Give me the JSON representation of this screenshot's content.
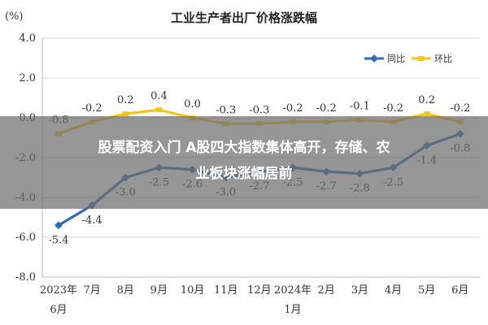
{
  "chart_data": {
    "type": "line",
    "title": "工业生产者出厂价格涨跌幅",
    "ylabel": "(%)",
    "ylim": [
      -8.0,
      4.0
    ],
    "yticks": [
      "4.0",
      "2.0",
      "0.0",
      "-2.0",
      "-4.0",
      "-6.0",
      "-8.0"
    ],
    "categories": [
      {
        "line1": "2023年",
        "line2": "6月"
      },
      {
        "line1": "7月",
        "line2": ""
      },
      {
        "line1": "8月",
        "line2": ""
      },
      {
        "line1": "9月",
        "line2": ""
      },
      {
        "line1": "10月",
        "line2": ""
      },
      {
        "line1": "11月",
        "line2": ""
      },
      {
        "line1": "12月",
        "line2": ""
      },
      {
        "line1": "2024年",
        "line2": "1月"
      },
      {
        "line1": "2月",
        "line2": ""
      },
      {
        "line1": "3月",
        "line2": ""
      },
      {
        "line1": "4月",
        "line2": ""
      },
      {
        "line1": "5月",
        "line2": ""
      },
      {
        "line1": "6月",
        "line2": ""
      }
    ],
    "series": [
      {
        "name": "同比",
        "color": "#2f6db5",
        "values": [
          -5.4,
          -4.4,
          -3.0,
          -2.5,
          -2.6,
          -3.0,
          -2.7,
          -2.5,
          -2.7,
          -2.8,
          -2.5,
          -1.4,
          -0.8
        ],
        "labels": [
          "-5.4",
          "-4.4",
          "-3.0",
          "-2.5",
          "-2.6",
          "-3.0",
          "-2.7",
          "-2.5",
          "-2.7",
          "-2.8",
          "-2.5",
          "-1.4",
          "-0.8"
        ]
      },
      {
        "name": "环比",
        "color": "#f2c61f",
        "values": [
          -0.8,
          -0.2,
          0.2,
          0.4,
          0.0,
          -0.3,
          -0.3,
          -0.2,
          -0.2,
          -0.1,
          -0.2,
          0.2,
          -0.2
        ],
        "labels": [
          "-0.8",
          "-0.2",
          "0.2",
          "0.4",
          "0.0",
          "-0.3",
          "-0.3",
          "-0.2",
          "-0.2",
          "-0.1",
          "-0.2",
          "0.2",
          "-0.2"
        ]
      }
    ],
    "legend_position": "top-right",
    "grid": true
  },
  "overlay": {
    "line1": "股票配资入门 A股四大指数集体高开，存储、农",
    "line2": "业板块涨幅居前"
  }
}
